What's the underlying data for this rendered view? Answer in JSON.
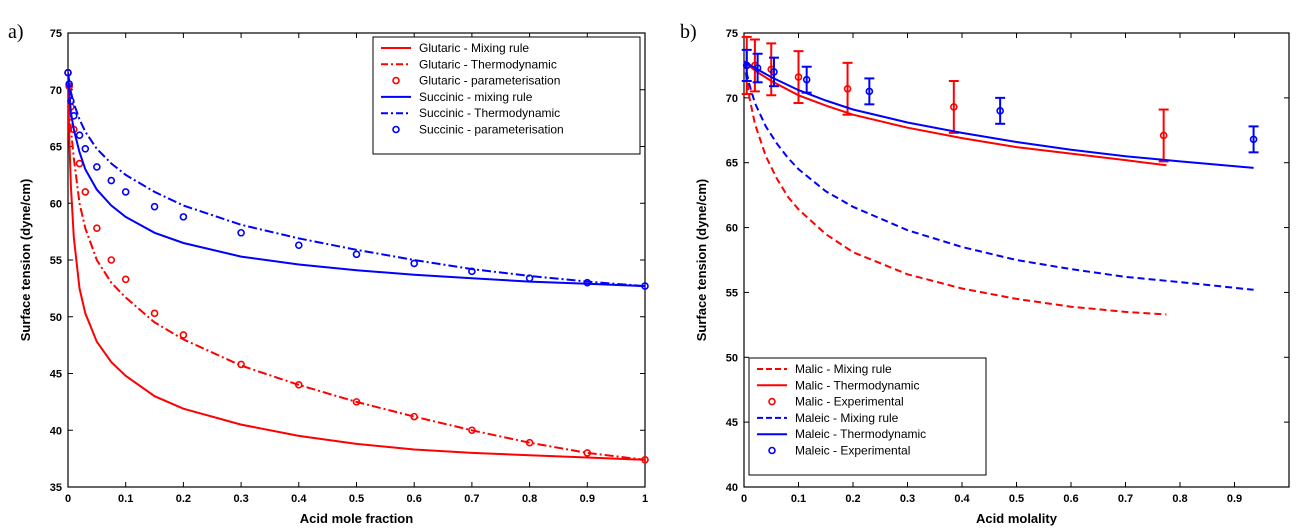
{
  "chart_data": [
    {
      "panel_label": "a)",
      "type": "line",
      "xlabel": "Acid mole fraction",
      "ylabel": "Surface tension (dyne/cm)",
      "xlim": [
        0,
        1
      ],
      "ylim": [
        35,
        75
      ],
      "xticks": [
        0,
        0.1,
        0.2,
        0.3,
        0.4,
        0.5,
        0.6,
        0.7,
        0.8,
        0.9,
        1
      ],
      "xtick_labels": [
        "0",
        "0.1",
        "0.2",
        "0.3",
        "0.4",
        "0.5",
        "0.6",
        "0.7",
        "0.8",
        "0.9",
        "1"
      ],
      "yticks": [
        35,
        40,
        45,
        50,
        55,
        60,
        65,
        70,
        75
      ],
      "ytick_labels": [
        "35",
        "40",
        "45",
        "50",
        "55",
        "60",
        "65",
        "70",
        "75"
      ],
      "legend_position": "top-right",
      "series": [
        {
          "name": "Glutaric - Mixing rule",
          "color": "#ff0000",
          "style": "solid",
          "marker": "none",
          "x": [
            0,
            0.002,
            0.005,
            0.01,
            0.02,
            0.03,
            0.05,
            0.075,
            0.1,
            0.15,
            0.2,
            0.3,
            0.4,
            0.5,
            0.6,
            0.7,
            0.8,
            0.9,
            1
          ],
          "y": [
            71.5,
            66,
            61.5,
            57,
            52.5,
            50.3,
            47.8,
            46,
            44.8,
            43,
            41.9,
            40.5,
            39.5,
            38.8,
            38.3,
            38,
            37.8,
            37.6,
            37.4
          ]
        },
        {
          "name": "Glutaric - Thermodynamic",
          "color": "#ff0000",
          "style": "dashdot",
          "marker": "none",
          "x": [
            0,
            0.002,
            0.005,
            0.01,
            0.02,
            0.03,
            0.05,
            0.075,
            0.1,
            0.15,
            0.2,
            0.3,
            0.4,
            0.5,
            0.6,
            0.7,
            0.8,
            0.9,
            1
          ],
          "y": [
            71.5,
            69,
            66.5,
            64,
            60,
            57.8,
            55,
            53,
            51.7,
            49.5,
            48,
            45.7,
            44,
            42.5,
            41.2,
            40,
            38.9,
            38,
            37.4
          ]
        },
        {
          "name": "Glutaric - parameterisation",
          "color": "#ff0000",
          "style": "none",
          "marker": "circle",
          "x": [
            0,
            0.002,
            0.005,
            0.01,
            0.02,
            0.03,
            0.05,
            0.075,
            0.1,
            0.15,
            0.2,
            0.3,
            0.4,
            0.5,
            0.6,
            0.7,
            0.8,
            0.9,
            1
          ],
          "y": [
            71.5,
            70.3,
            68.5,
            66.5,
            63.5,
            61,
            57.8,
            55,
            53.3,
            50.3,
            48.4,
            45.8,
            44,
            42.5,
            41.2,
            40,
            38.9,
            38,
            37.4
          ]
        },
        {
          "name": "Succinic - mixing rule",
          "color": "#0000ff",
          "style": "solid",
          "marker": "none",
          "x": [
            0,
            0.002,
            0.005,
            0.01,
            0.02,
            0.03,
            0.05,
            0.075,
            0.1,
            0.15,
            0.2,
            0.3,
            0.4,
            0.5,
            0.6,
            0.7,
            0.8,
            0.9,
            1
          ],
          "y": [
            71.5,
            70,
            68,
            66.5,
            64.5,
            63,
            61.2,
            59.8,
            58.8,
            57.4,
            56.5,
            55.3,
            54.6,
            54.1,
            53.7,
            53.4,
            53.1,
            52.9,
            52.7
          ]
        },
        {
          "name": "Succinic - Thermodynamic",
          "color": "#0000ff",
          "style": "dashdot",
          "marker": "none",
          "x": [
            0,
            0.002,
            0.005,
            0.01,
            0.02,
            0.03,
            0.05,
            0.075,
            0.1,
            0.15,
            0.2,
            0.3,
            0.4,
            0.5,
            0.6,
            0.7,
            0.8,
            0.9,
            1
          ],
          "y": [
            71.5,
            70.8,
            69.8,
            68.8,
            67.4,
            66.3,
            64.8,
            63.5,
            62.5,
            61,
            59.8,
            58.1,
            56.9,
            55.9,
            55,
            54.2,
            53.6,
            53.1,
            52.7
          ]
        },
        {
          "name": "Succinic - parameterisation",
          "color": "#0000ff",
          "style": "none",
          "marker": "circle",
          "x": [
            0,
            0.002,
            0.005,
            0.01,
            0.02,
            0.03,
            0.05,
            0.075,
            0.1,
            0.15,
            0.2,
            0.3,
            0.4,
            0.5,
            0.6,
            0.7,
            0.8,
            0.9,
            1
          ],
          "y": [
            71.5,
            70.5,
            69,
            67.7,
            66,
            64.8,
            63.2,
            62,
            61,
            59.7,
            58.8,
            57.4,
            56.3,
            55.5,
            54.7,
            54,
            53.4,
            53,
            52.7
          ]
        }
      ]
    },
    {
      "panel_label": "b)",
      "type": "line",
      "xlabel": "Acid molality",
      "ylabel": "Surface tension (dyne/cm)",
      "xlim": [
        0,
        1
      ],
      "ylim": [
        40,
        75
      ],
      "xticks": [
        0,
        0.1,
        0.2,
        0.3,
        0.4,
        0.5,
        0.6,
        0.7,
        0.8,
        0.9
      ],
      "xtick_labels": [
        "0",
        "0.1",
        "0.2",
        "0.3",
        "0.4",
        "0.5",
        "0.6",
        "0.7",
        "0.8",
        "0.9"
      ],
      "yticks": [
        40,
        45,
        50,
        55,
        60,
        65,
        70,
        75
      ],
      "ytick_labels": [
        "40",
        "45",
        "50",
        "55",
        "60",
        "65",
        "70",
        "75"
      ],
      "legend_position": "bottom-left",
      "series": [
        {
          "name": "Malic - Mixing rule",
          "color": "#ff0000",
          "style": "dashed",
          "marker": "none",
          "x": [
            0,
            0.01,
            0.02,
            0.04,
            0.06,
            0.08,
            0.1,
            0.15,
            0.2,
            0.3,
            0.4,
            0.5,
            0.6,
            0.7,
            0.775
          ],
          "y": [
            72.8,
            70,
            68,
            65.5,
            63.8,
            62.4,
            61.4,
            59.5,
            58.1,
            56.4,
            55.3,
            54.5,
            53.9,
            53.5,
            53.3
          ]
        },
        {
          "name": "Malic - Thermodynamic",
          "color": "#ff0000",
          "style": "solid",
          "marker": "none",
          "x": [
            0,
            0.02,
            0.05,
            0.1,
            0.15,
            0.2,
            0.3,
            0.4,
            0.5,
            0.6,
            0.7,
            0.775
          ],
          "y": [
            72.8,
            72.1,
            71.3,
            70.2,
            69.4,
            68.7,
            67.7,
            66.9,
            66.2,
            65.7,
            65.2,
            64.8
          ]
        },
        {
          "name": "Malic - Experimental",
          "color": "#ff0000",
          "style": "none",
          "marker": "circle",
          "x": [
            0.005,
            0.02,
            0.05,
            0.1,
            0.19,
            0.385,
            0.77
          ],
          "y": [
            72.5,
            72.5,
            72.2,
            71.6,
            70.7,
            69.3,
            67.1
          ],
          "yerr": [
            2.2,
            2.0,
            2.0,
            2.0,
            2.0,
            2.0,
            2.0
          ]
        },
        {
          "name": "Maleic - Mixing rule",
          "color": "#0000ff",
          "style": "dashed",
          "marker": "none",
          "x": [
            0,
            0.01,
            0.02,
            0.04,
            0.06,
            0.08,
            0.1,
            0.15,
            0.2,
            0.3,
            0.4,
            0.5,
            0.6,
            0.7,
            0.8,
            0.935
          ],
          "y": [
            72.8,
            71,
            69.6,
            67.8,
            66.5,
            65.4,
            64.5,
            62.8,
            61.6,
            59.8,
            58.5,
            57.5,
            56.8,
            56.2,
            55.8,
            55.2
          ]
        },
        {
          "name": "Maleic - Thermodynamic",
          "color": "#0000ff",
          "style": "solid",
          "marker": "none",
          "x": [
            0,
            0.02,
            0.05,
            0.1,
            0.15,
            0.2,
            0.3,
            0.4,
            0.5,
            0.6,
            0.7,
            0.8,
            0.935
          ],
          "y": [
            72.8,
            72.3,
            71.6,
            70.6,
            69.8,
            69.1,
            68.1,
            67.3,
            66.6,
            66,
            65.5,
            65.1,
            64.6
          ]
        },
        {
          "name": "Maleic - Experimental",
          "color": "#0000ff",
          "style": "none",
          "marker": "circle",
          "x": [
            0.005,
            0.025,
            0.055,
            0.115,
            0.23,
            0.47,
            0.935
          ],
          "y": [
            72.5,
            72.3,
            72.0,
            71.4,
            70.5,
            69.0,
            66.8
          ],
          "yerr": [
            1.2,
            1.1,
            1.1,
            1.0,
            1.0,
            1.0,
            1.0
          ]
        }
      ]
    }
  ]
}
